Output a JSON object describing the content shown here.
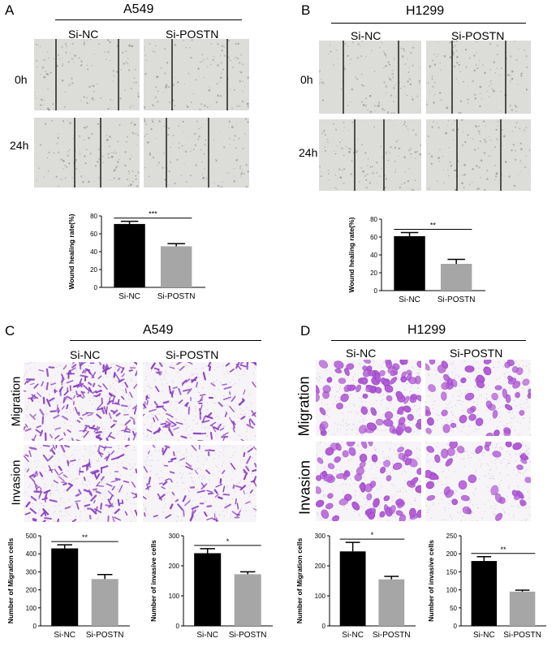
{
  "panels": {
    "A": {
      "letter": "A",
      "title": "A549",
      "cols": [
        "Si-NC",
        "Si-POSTN"
      ],
      "rows": [
        "0h",
        "24h"
      ]
    },
    "B": {
      "letter": "B",
      "title": "H1299",
      "cols": [
        "Si-NC",
        "Si-POSTN"
      ],
      "rows": [
        "0h",
        "24h"
      ]
    },
    "C": {
      "letter": "C",
      "title": "A549",
      "cols": [
        "Si-NC",
        "Si-POSTN"
      ],
      "rows": [
        "Migration",
        "Invasion"
      ]
    },
    "D": {
      "letter": "D",
      "title": "H1299",
      "cols": [
        "Si-NC",
        "Si-POSTN"
      ],
      "rows": [
        "Migration",
        "Invasion"
      ]
    }
  },
  "colors": {
    "si_nc": "#000000",
    "si_postn": "#a6a6a6",
    "stain": "#8b3fc0",
    "wound_bg": "#dcdcd8"
  },
  "chart_data": [
    {
      "id": "A",
      "type": "bar",
      "categories": [
        "Si-NC",
        "Si-POSTN"
      ],
      "values": [
        71,
        46
      ],
      "errors": [
        3,
        3
      ],
      "ylabel": "Wound healing rate(%)",
      "ylim": [
        0,
        80
      ],
      "yticks": [
        0,
        20,
        40,
        60,
        80
      ],
      "significance": "***"
    },
    {
      "id": "B",
      "type": "bar",
      "categories": [
        "Si-NC",
        "Si-POSTN"
      ],
      "values": [
        61,
        30
      ],
      "errors": [
        4,
        5
      ],
      "ylabel": "Wound healing rate(%)",
      "ylim": [
        0,
        80
      ],
      "yticks": [
        0,
        20,
        40,
        60,
        80
      ],
      "significance": "**"
    },
    {
      "id": "C1",
      "type": "bar",
      "categories": [
        "Si-NC",
        "Si-POSTN"
      ],
      "values": [
        430,
        260
      ],
      "errors": [
        20,
        25
      ],
      "ylabel": "Number of Migration cells",
      "ylim": [
        0,
        500
      ],
      "yticks": [
        0,
        100,
        200,
        300,
        400,
        500
      ],
      "significance": "**"
    },
    {
      "id": "C2",
      "type": "bar",
      "categories": [
        "Si-NC",
        "Si-POSTN"
      ],
      "values": [
        242,
        172
      ],
      "errors": [
        15,
        8
      ],
      "ylabel": "Number of invasive cells",
      "ylim": [
        0,
        300
      ],
      "yticks": [
        0,
        100,
        200,
        300
      ],
      "significance": "*"
    },
    {
      "id": "D1",
      "type": "bar",
      "categories": [
        "Si-NC",
        "Si-POSTN"
      ],
      "values": [
        248,
        155
      ],
      "errors": [
        30,
        10
      ],
      "ylabel": "Number of Migration cells",
      "ylim": [
        0,
        300
      ],
      "yticks": [
        0,
        100,
        200,
        300
      ],
      "significance": "*"
    },
    {
      "id": "D2",
      "type": "bar",
      "categories": [
        "Si-NC",
        "Si-POSTN"
      ],
      "values": [
        180,
        95
      ],
      "errors": [
        12,
        4
      ],
      "ylabel": "Number of invasive cells",
      "ylim": [
        0,
        250
      ],
      "yticks": [
        0,
        50,
        100,
        150,
        200,
        250
      ],
      "significance": "**"
    }
  ]
}
